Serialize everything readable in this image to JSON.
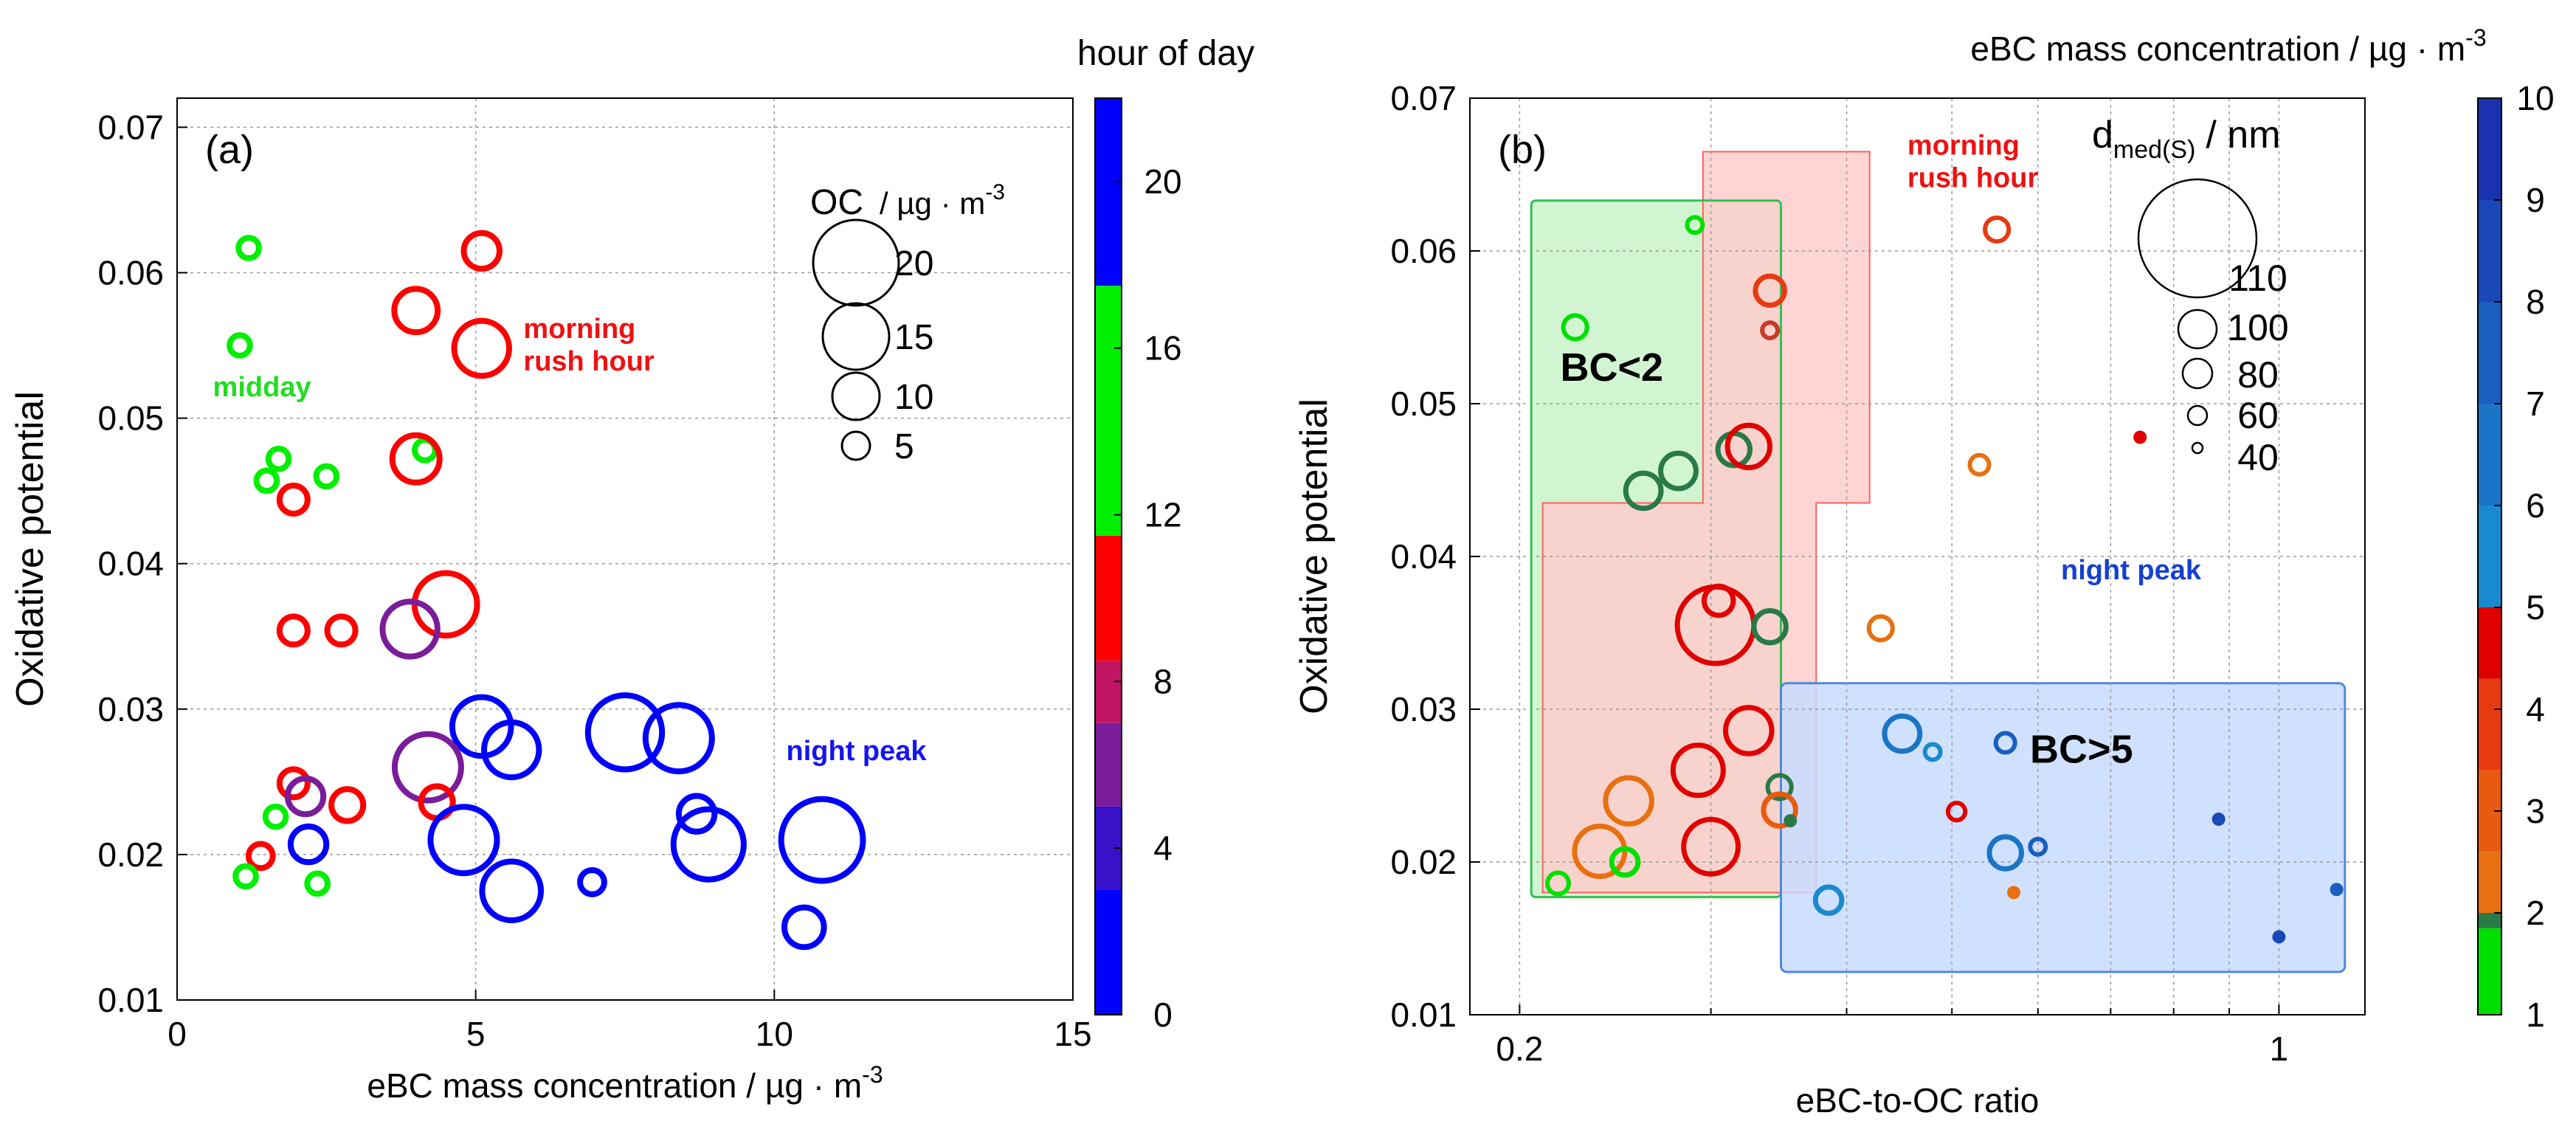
{
  "chart_data": [
    {
      "id": "a",
      "type": "scatter",
      "panel_label": "(a)",
      "xlabel": "eBC mass concentration / µg · m",
      "xlabel_sup": "-3",
      "ylabel": "Oxidative potential",
      "xlim": [
        0,
        15
      ],
      "ylim": [
        0.01,
        0.072
      ],
      "xticks": [
        0,
        5,
        10,
        15
      ],
      "xtick_labels": [
        "0",
        "5",
        "10",
        "15"
      ],
      "yticks": [
        0.01,
        0.02,
        0.03,
        0.04,
        0.05,
        0.06,
        0.07
      ],
      "ytick_labels": [
        "0.01",
        "0.02",
        "0.03",
        "0.04",
        "0.05",
        "0.06",
        "0.07"
      ],
      "grid": true,
      "colorbar": {
        "title": "hour of day",
        "range": [
          0,
          22
        ],
        "ticks": [
          0,
          4,
          8,
          12,
          16,
          20
        ],
        "tick_labels": [
          "0",
          "4",
          "8",
          "12",
          "16",
          "20"
        ],
        "segments": [
          {
            "from": 0,
            "to": 3,
            "color": "#0000ff"
          },
          {
            "from": 3,
            "to": 5,
            "color": "#3a10c8"
          },
          {
            "from": 5,
            "to": 7,
            "color": "#7a1d9a"
          },
          {
            "from": 7,
            "to": 8.5,
            "color": "#c01565"
          },
          {
            "from": 8.5,
            "to": 11.5,
            "color": "#ff0000"
          },
          {
            "from": 11.5,
            "to": 17.5,
            "color": "#00ee00"
          },
          {
            "from": 17.5,
            "to": 22,
            "color": "#0000ff"
          }
        ]
      },
      "size_legend": {
        "title": "OC",
        "unit": "/ µg · m",
        "unit_sup": "-3",
        "entries": [
          {
            "value": 20,
            "label": "20"
          },
          {
            "value": 15,
            "label": "15"
          },
          {
            "value": 10,
            "label": "10"
          },
          {
            "value": 5,
            "label": "5"
          }
        ]
      },
      "annotations": [
        {
          "lines": [
            "midday"
          ],
          "color": "#22dd22",
          "x": 0.6,
          "y": 0.0515
        },
        {
          "lines": [
            "morning",
            "rush hour"
          ],
          "color": "#ee1111",
          "x": 5.8,
          "y": 0.0555
        },
        {
          "lines": [
            "night peak"
          ],
          "color": "#1515ee",
          "x": 10.2,
          "y": 0.0265
        }
      ],
      "points": [
        {
          "x": 1.2,
          "y": 0.0617,
          "oc": 3,
          "color": "#00ee00"
        },
        {
          "x": 1.05,
          "y": 0.055,
          "oc": 3,
          "color": "#00ee00"
        },
        {
          "x": 1.7,
          "y": 0.0472,
          "oc": 3,
          "color": "#00ee00"
        },
        {
          "x": 1.5,
          "y": 0.0457,
          "oc": 3,
          "color": "#00ee00"
        },
        {
          "x": 2.5,
          "y": 0.046,
          "oc": 3,
          "color": "#00ee00"
        },
        {
          "x": 1.95,
          "y": 0.0444,
          "oc": 5,
          "color": "#ff0000"
        },
        {
          "x": 4.15,
          "y": 0.0478,
          "oc": 3,
          "color": "#00ee00"
        },
        {
          "x": 4.0,
          "y": 0.0472,
          "oc": 10,
          "color": "#ff0000"
        },
        {
          "x": 5.1,
          "y": 0.0615,
          "oc": 7,
          "color": "#ff0000"
        },
        {
          "x": 4.0,
          "y": 0.0574,
          "oc": 9,
          "color": "#ff0000"
        },
        {
          "x": 5.1,
          "y": 0.0548,
          "oc": 12,
          "color": "#ff0000"
        },
        {
          "x": 4.5,
          "y": 0.0372,
          "oc": 14,
          "color": "#ff0000"
        },
        {
          "x": 3.9,
          "y": 0.0355,
          "oc": 12,
          "color": "#7a1d9a"
        },
        {
          "x": 1.95,
          "y": 0.0354,
          "oc": 5,
          "color": "#ff0000"
        },
        {
          "x": 2.75,
          "y": 0.0354,
          "oc": 5,
          "color": "#ff0000"
        },
        {
          "x": 5.1,
          "y": 0.0288,
          "oc": 13,
          "color": "#0000ff"
        },
        {
          "x": 5.6,
          "y": 0.0272,
          "oc": 12,
          "color": "#0000ff"
        },
        {
          "x": 7.5,
          "y": 0.0284,
          "oc": 17,
          "color": "#0000ff"
        },
        {
          "x": 8.4,
          "y": 0.028,
          "oc": 15,
          "color": "#0000ff"
        },
        {
          "x": 4.2,
          "y": 0.026,
          "oc": 15,
          "color": "#7a1d9a"
        },
        {
          "x": 1.95,
          "y": 0.0249,
          "oc": 5,
          "color": "#ff0000"
        },
        {
          "x": 2.15,
          "y": 0.024,
          "oc": 7,
          "color": "#7a1d9a"
        },
        {
          "x": 4.35,
          "y": 0.0236,
          "oc": 6,
          "color": "#ff0000"
        },
        {
          "x": 2.85,
          "y": 0.0234,
          "oc": 6,
          "color": "#ff0000"
        },
        {
          "x": 1.65,
          "y": 0.0226,
          "oc": 3,
          "color": "#00ee00"
        },
        {
          "x": 8.7,
          "y": 0.0228,
          "oc": 7,
          "color": "#0000ff"
        },
        {
          "x": 4.8,
          "y": 0.021,
          "oc": 15,
          "color": "#0000ff"
        },
        {
          "x": 2.2,
          "y": 0.0207,
          "oc": 7,
          "color": "#0000ff"
        },
        {
          "x": 8.9,
          "y": 0.0207,
          "oc": 16,
          "color": "#0000ff"
        },
        {
          "x": 10.8,
          "y": 0.021,
          "oc": 19,
          "color": "#0000ff"
        },
        {
          "x": 1.4,
          "y": 0.0199,
          "oc": 4,
          "color": "#ff0000"
        },
        {
          "x": 1.15,
          "y": 0.0185,
          "oc": 3,
          "color": "#00ee00"
        },
        {
          "x": 2.35,
          "y": 0.018,
          "oc": 3,
          "color": "#00ee00"
        },
        {
          "x": 5.6,
          "y": 0.0175,
          "oc": 13,
          "color": "#0000ff"
        },
        {
          "x": 6.95,
          "y": 0.0181,
          "oc": 4,
          "color": "#0000ff"
        },
        {
          "x": 10.5,
          "y": 0.015,
          "oc": 8,
          "color": "#0000ff"
        }
      ]
    },
    {
      "id": "b",
      "type": "scatter",
      "panel_label": "(b)",
      "title": "eBC mass concentration / µg · m",
      "title_sup": "-3",
      "xlabel": "eBC-to-OC ratio",
      "ylabel": "Oxidative potential",
      "xscale": "log",
      "xlim": [
        0.18,
        1.2
      ],
      "ylim": [
        0.01,
        0.07
      ],
      "xticks": [
        0.2,
        1
      ],
      "xtick_labels": [
        "0.2",
        "1"
      ],
      "x_minor_grid": [
        0.3,
        0.4,
        0.5,
        0.6,
        0.7,
        0.8,
        0.9
      ],
      "yticks": [
        0.01,
        0.02,
        0.03,
        0.04,
        0.05,
        0.06,
        0.07
      ],
      "ytick_labels": [
        "0.01",
        "0.02",
        "0.03",
        "0.04",
        "0.05",
        "0.06",
        "0.07"
      ],
      "grid": true,
      "colorbar": {
        "range": [
          1,
          10
        ],
        "ticks": [
          1,
          2,
          3,
          4,
          5,
          6,
          7,
          8,
          9,
          10
        ],
        "tick_labels": [
          "1",
          "2",
          "3",
          "4",
          "5",
          "6",
          "7",
          "8",
          "9",
          "10"
        ],
        "segments": [
          {
            "from": 1,
            "to": 1.85,
            "color": "#00e000"
          },
          {
            "from": 1.85,
            "to": 2,
            "color": "#2a7a48"
          },
          {
            "from": 2,
            "to": 2.6,
            "color": "#e87010"
          },
          {
            "from": 2.6,
            "to": 3.4,
            "color": "#e85a10"
          },
          {
            "from": 3.4,
            "to": 4.3,
            "color": "#e83a10"
          },
          {
            "from": 4.3,
            "to": 5,
            "color": "#e00000"
          },
          {
            "from": 5,
            "to": 6,
            "color": "#1a8ad0"
          },
          {
            "from": 6,
            "to": 7,
            "color": "#1a74c8"
          },
          {
            "from": 7,
            "to": 8,
            "color": "#1a5ec0"
          },
          {
            "from": 8,
            "to": 9,
            "color": "#1a48b8"
          },
          {
            "from": 9,
            "to": 10,
            "color": "#1a32b0"
          }
        ]
      },
      "size_legend": {
        "title": "d",
        "title_sub": "med(S)",
        "unit": "/ nm",
        "entries": [
          {
            "value": 110,
            "label": "110"
          },
          {
            "value": 100,
            "label": "100"
          },
          {
            "value": 80,
            "label": "80"
          },
          {
            "value": 60,
            "label": "60"
          },
          {
            "value": 40,
            "label": "40"
          }
        ]
      },
      "annotations": [
        {
          "lines": [
            "morning",
            "rush hour"
          ],
          "color": "#ee1111",
          "x": 0.455,
          "y": 0.0663
        },
        {
          "lines": [
            "night peak"
          ],
          "color": "#1540d0",
          "x": 0.63,
          "y": 0.0385
        },
        {
          "lines": [
            "BC<2"
          ],
          "color": "#000000",
          "x": 0.218,
          "y": 0.0515
        },
        {
          "lines": [
            "BC>5"
          ],
          "color": "#000000",
          "x": 0.59,
          "y": 0.0265
        }
      ],
      "regions": [
        {
          "name": "BC<2",
          "color": "#c6f2c6",
          "stroke": "#30c050",
          "x0": 0.205,
          "x1": 0.348,
          "y0": 0.0177,
          "y1": 0.0633
        },
        {
          "name": "morning rush hour",
          "color": "#ffcccc",
          "stroke": "#ff6060",
          "x0": 0.21,
          "x1": 0.42,
          "y0": 0.018,
          "y1": 0.0665
        },
        {
          "name": "night peak",
          "color": "#c8dcff",
          "stroke": "#5088e0",
          "x0": 0.348,
          "x1": 1.15,
          "y0": 0.0128,
          "y1": 0.0317
        }
      ],
      "points": [
        {
          "x": 0.29,
          "y": 0.0617,
          "d": 40,
          "color": "#00e000"
        },
        {
          "x": 0.225,
          "y": 0.055,
          "d": 60,
          "color": "#00e000"
        },
        {
          "x": 0.55,
          "y": 0.0614,
          "d": 60,
          "color": "#e83a10"
        },
        {
          "x": 0.34,
          "y": 0.0574,
          "d": 70,
          "color": "#e83a10"
        },
        {
          "x": 0.34,
          "y": 0.0548,
          "d": 40,
          "color": "#c83a2a"
        },
        {
          "x": 0.26,
          "y": 0.0443,
          "d": 80,
          "color": "#2a7a48"
        },
        {
          "x": 0.28,
          "y": 0.0456,
          "d": 80,
          "color": "#2a7a48"
        },
        {
          "x": 0.315,
          "y": 0.047,
          "d": 75,
          "color": "#2a7a48"
        },
        {
          "x": 0.325,
          "y": 0.0472,
          "d": 90,
          "color": "#e00000"
        },
        {
          "x": 0.53,
          "y": 0.046,
          "d": 50,
          "color": "#e87010"
        },
        {
          "x": 0.745,
          "y": 0.0478,
          "d": 30,
          "color": "#e00000"
        },
        {
          "x": 0.303,
          "y": 0.0355,
          "d": 128,
          "color": "#e00000"
        },
        {
          "x": 0.305,
          "y": 0.0371,
          "d": 70,
          "color": "#e00000"
        },
        {
          "x": 0.34,
          "y": 0.0354,
          "d": 75,
          "color": "#2a7a48"
        },
        {
          "x": 0.43,
          "y": 0.0353,
          "d": 60,
          "color": "#e87010"
        },
        {
          "x": 0.325,
          "y": 0.0286,
          "d": 95,
          "color": "#e00000"
        },
        {
          "x": 0.292,
          "y": 0.026,
          "d": 100,
          "color": "#e00000"
        },
        {
          "x": 0.45,
          "y": 0.0284,
          "d": 80,
          "color": "#1a74c8"
        },
        {
          "x": 0.48,
          "y": 0.0272,
          "d": 40,
          "color": "#1a8ad0"
        },
        {
          "x": 0.56,
          "y": 0.0278,
          "d": 50,
          "color": "#1a5ec0"
        },
        {
          "x": 0.252,
          "y": 0.024,
          "d": 95,
          "color": "#e87010"
        },
        {
          "x": 0.347,
          "y": 0.0249,
          "d": 60,
          "color": "#2a7a48"
        },
        {
          "x": 0.347,
          "y": 0.0234,
          "d": 75,
          "color": "#e85a10"
        },
        {
          "x": 0.505,
          "y": 0.0233,
          "d": 45,
          "color": "#e00000"
        },
        {
          "x": 0.355,
          "y": 0.0227,
          "d": 30,
          "color": "#2a7a48"
        },
        {
          "x": 0.88,
          "y": 0.0228,
          "d": 30,
          "color": "#1a48b8"
        },
        {
          "x": 0.237,
          "y": 0.0207,
          "d": 100,
          "color": "#e87010"
        },
        {
          "x": 0.3,
          "y": 0.021,
          "d": 105,
          "color": "#e00000"
        },
        {
          "x": 0.25,
          "y": 0.02,
          "d": 65,
          "color": "#00e000"
        },
        {
          "x": 0.56,
          "y": 0.0206,
          "d": 75,
          "color": "#1a74c8"
        },
        {
          "x": 0.6,
          "y": 0.021,
          "d": 40,
          "color": "#1a5ec0"
        },
        {
          "x": 0.217,
          "y": 0.0186,
          "d": 55,
          "color": "#00e000"
        },
        {
          "x": 0.385,
          "y": 0.0175,
          "d": 65,
          "color": "#1a8ad0"
        },
        {
          "x": 0.57,
          "y": 0.018,
          "d": 30,
          "color": "#e87010"
        },
        {
          "x": 1.0,
          "y": 0.0151,
          "d": 30,
          "color": "#1a48b8"
        },
        {
          "x": 1.13,
          "y": 0.0182,
          "d": 25,
          "color": "#1a5ec0"
        }
      ]
    }
  ]
}
